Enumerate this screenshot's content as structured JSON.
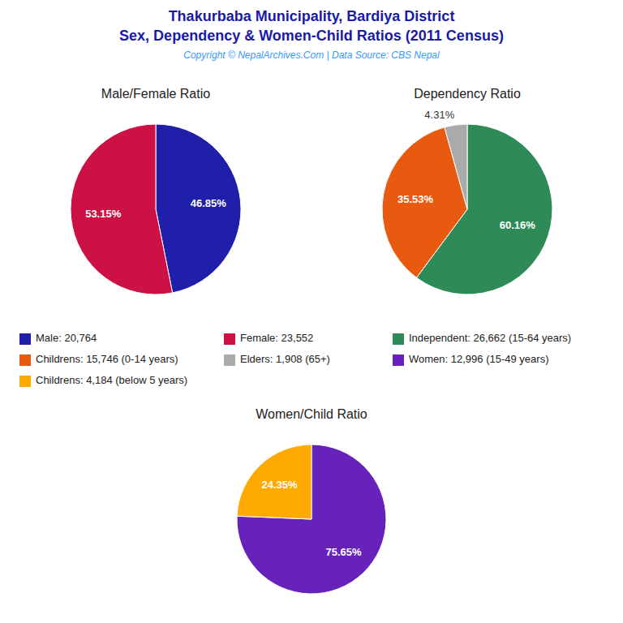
{
  "title": "Thakurbaba Municipality, Bardiya District",
  "subtitle": "Sex, Dependency & Women-Child Ratios (2011 Census)",
  "annotations": [
    "Copyright © NepalArchives.Com | Data Source: CBS Nepal"
  ],
  "chart_data": [
    {
      "type": "pie",
      "title": "Male/Female Ratio",
      "categories": [
        "Male: 20,764",
        "Female: 23,552"
      ],
      "values": [
        46.85,
        53.15
      ],
      "value_labels": [
        "46.85%",
        "53.15%"
      ],
      "colors": [
        "#1f1faa",
        "#cc1144"
      ],
      "data_labels": true,
      "legend": "bottom"
    },
    {
      "type": "pie",
      "title": "Dependency Ratio",
      "categories": [
        "Independent: 26,662 (15-64 years)",
        "Childrens: 15,746 (0-14 years)",
        "Elders: 1,908 (65+)"
      ],
      "values": [
        60.16,
        35.53,
        4.31
      ],
      "value_labels": [
        "60.16%",
        "35.53%",
        "4.31%"
      ],
      "colors": [
        "#2e8b57",
        "#e85a10",
        "#aaaaaa"
      ],
      "data_labels": true,
      "legend": "bottom"
    },
    {
      "type": "pie",
      "title": "Women/Child Ratio",
      "categories": [
        "Women: 12,996 (15-49 years)",
        "Childrens: 4,184 (below 5 years)"
      ],
      "values": [
        75.65,
        24.35
      ],
      "value_labels": [
        "75.65%",
        "24.35%"
      ],
      "colors": [
        "#6622bb",
        "#ffaa00"
      ],
      "data_labels": true,
      "legend": "bottom"
    }
  ]
}
